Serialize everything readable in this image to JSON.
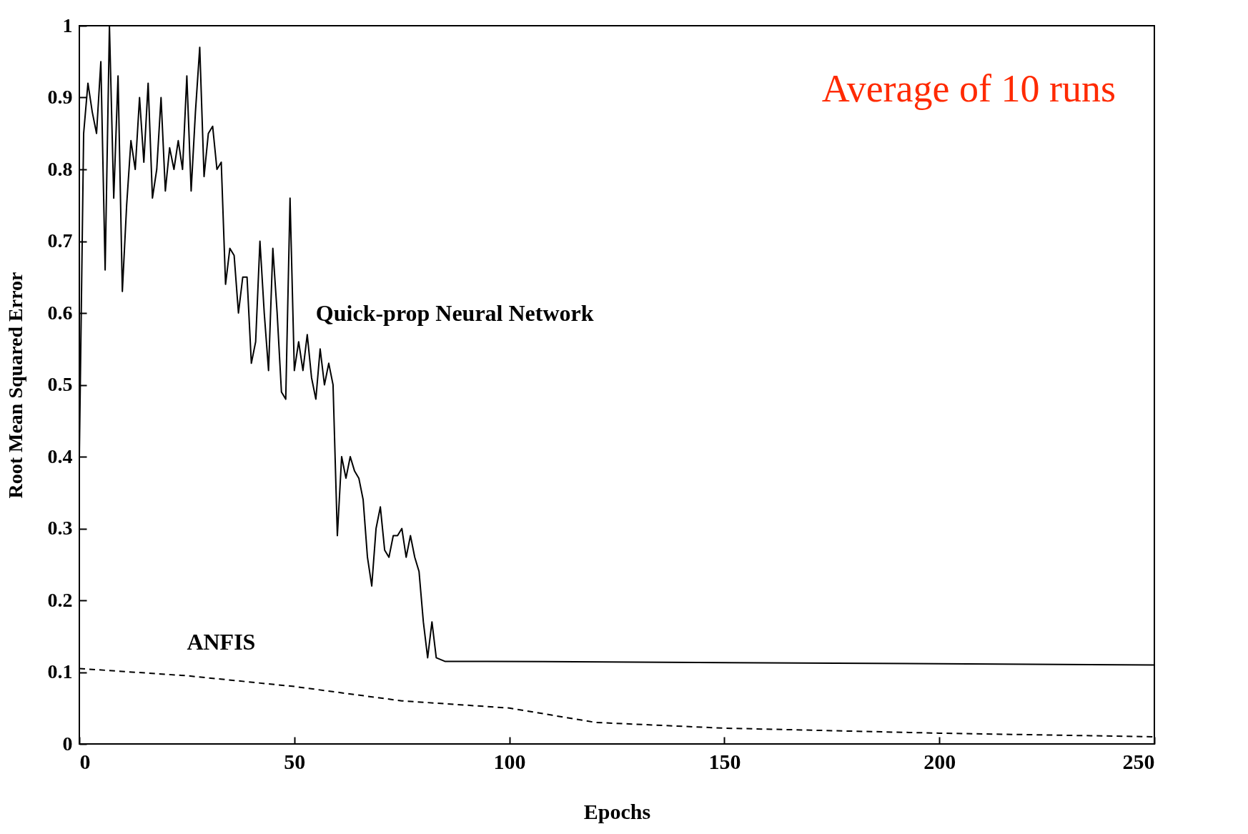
{
  "chart_data": {
    "type": "line",
    "xlabel": "Epochs",
    "ylabel": "Root Mean Squared Error",
    "xlim": [
      0,
      250
    ],
    "ylim": [
      0,
      1
    ],
    "xticks": [
      0,
      50,
      100,
      150,
      200,
      250
    ],
    "yticks": [
      0,
      0.1,
      0.2,
      0.3,
      0.4,
      0.5,
      0.6,
      0.7,
      0.8,
      0.9,
      1
    ],
    "grid": false,
    "marker": "none",
    "annotations": [
      "Average of 10 runs"
    ],
    "series": [
      {
        "name": "Quick-prop Neural Network",
        "color": "#000000",
        "line_style": "solid",
        "x": [
          0,
          1,
          2,
          3,
          4,
          5,
          6,
          7,
          8,
          9,
          10,
          11,
          12,
          13,
          14,
          15,
          16,
          17,
          18,
          19,
          20,
          21,
          22,
          23,
          24,
          25,
          26,
          27,
          28,
          29,
          30,
          31,
          32,
          33,
          34,
          35,
          36,
          37,
          38,
          39,
          40,
          41,
          42,
          43,
          44,
          45,
          46,
          47,
          48,
          49,
          50,
          51,
          52,
          53,
          54,
          55,
          56,
          57,
          58,
          59,
          60,
          61,
          62,
          63,
          64,
          65,
          66,
          67,
          68,
          69,
          70,
          71,
          72,
          73,
          74,
          75,
          76,
          77,
          78,
          79,
          80,
          81,
          82,
          83,
          85,
          95,
          250
        ],
        "values": [
          0.4,
          0.85,
          0.92,
          0.88,
          0.85,
          0.95,
          0.66,
          1.0,
          0.76,
          0.93,
          0.63,
          0.75,
          0.84,
          0.8,
          0.9,
          0.81,
          0.92,
          0.76,
          0.8,
          0.9,
          0.77,
          0.83,
          0.8,
          0.84,
          0.8,
          0.93,
          0.77,
          0.88,
          0.97,
          0.79,
          0.85,
          0.86,
          0.8,
          0.81,
          0.64,
          0.69,
          0.68,
          0.6,
          0.65,
          0.65,
          0.53,
          0.56,
          0.7,
          0.6,
          0.52,
          0.69,
          0.6,
          0.49,
          0.48,
          0.76,
          0.52,
          0.56,
          0.52,
          0.57,
          0.51,
          0.48,
          0.55,
          0.5,
          0.53,
          0.5,
          0.29,
          0.4,
          0.37,
          0.4,
          0.38,
          0.37,
          0.34,
          0.26,
          0.22,
          0.3,
          0.33,
          0.27,
          0.26,
          0.29,
          0.29,
          0.3,
          0.26,
          0.29,
          0.26,
          0.24,
          0.17,
          0.12,
          0.17,
          0.12,
          0.115,
          0.115,
          0.11
        ]
      },
      {
        "name": "ANFIS",
        "color": "#000000",
        "line_style": "dashed",
        "x": [
          0,
          25,
          50,
          75,
          100,
          110,
          120,
          150,
          200,
          250
        ],
        "values": [
          0.105,
          0.095,
          0.08,
          0.06,
          0.05,
          0.04,
          0.03,
          0.022,
          0.015,
          0.01
        ]
      }
    ]
  }
}
